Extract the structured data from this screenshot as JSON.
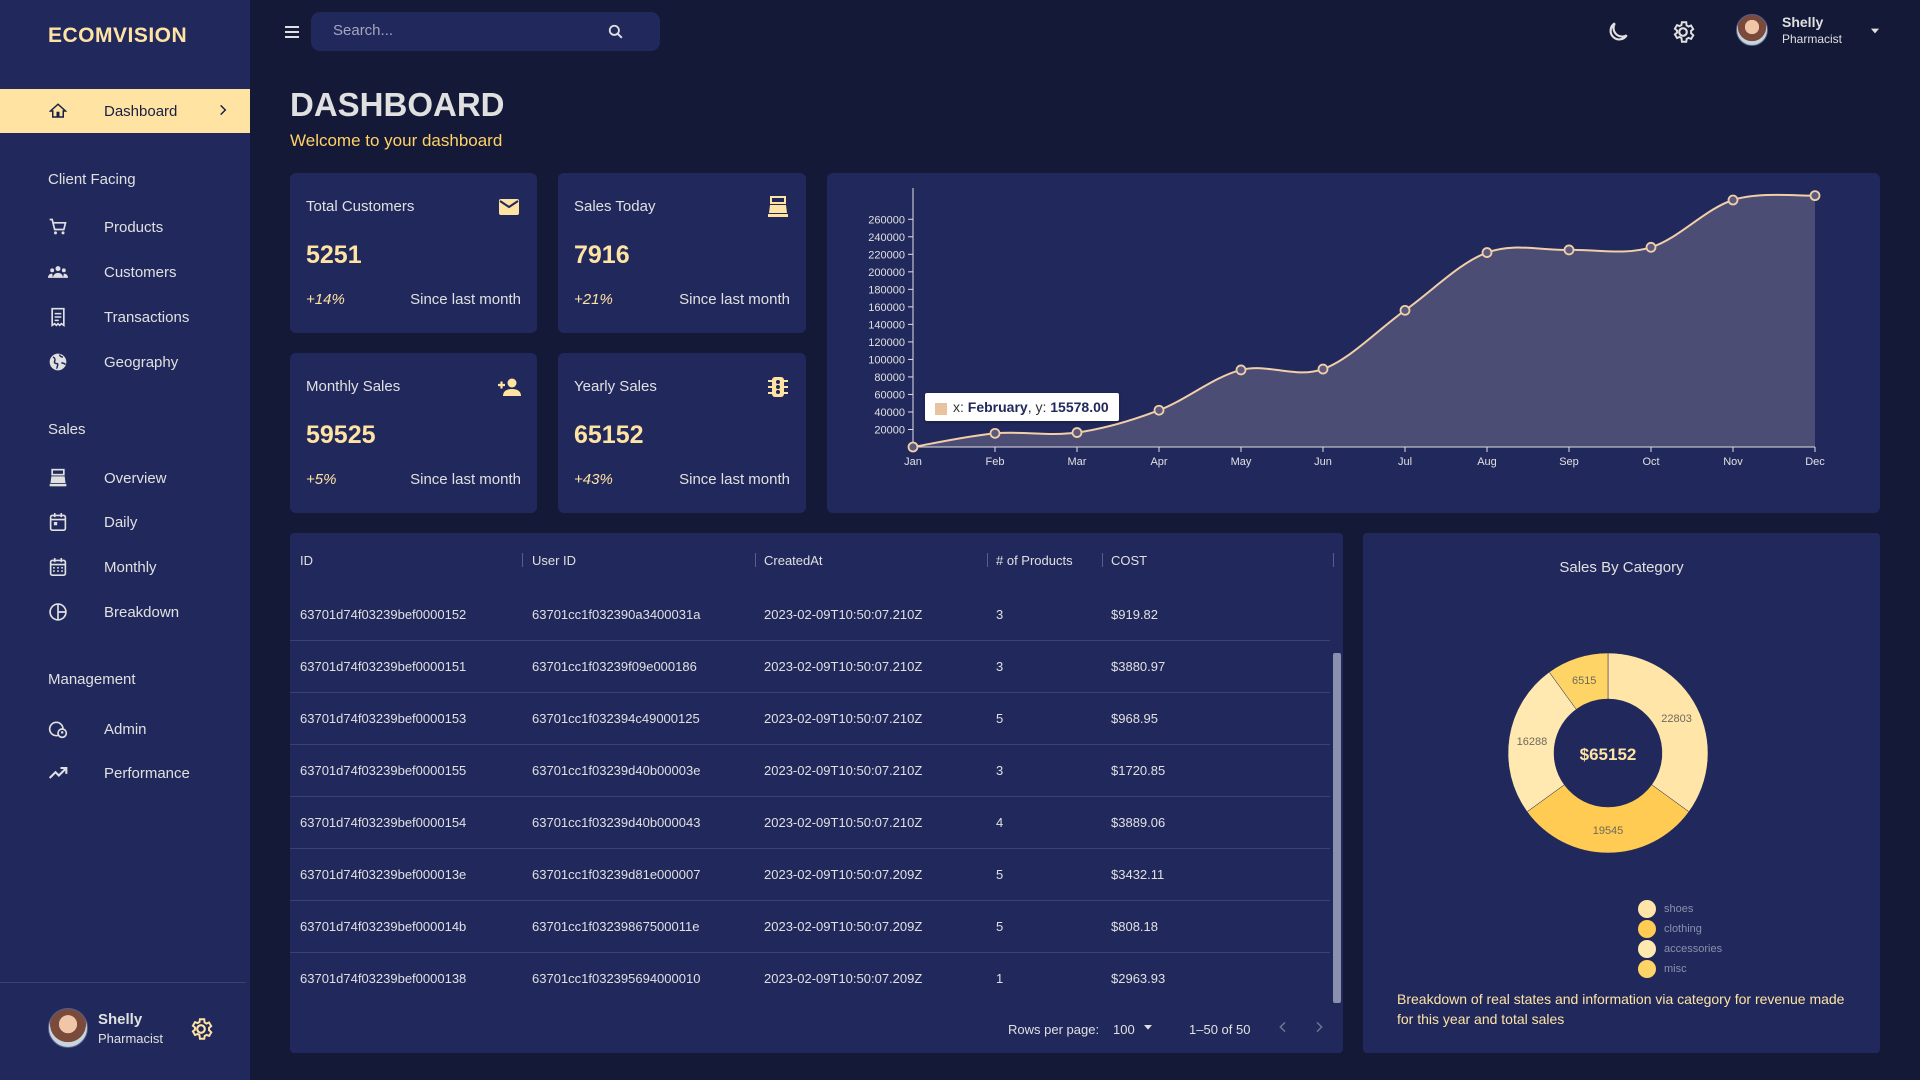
{
  "brand": "ECOMVISION",
  "search": {
    "placeholder": "Search..."
  },
  "user": {
    "name": "Shelly",
    "role": "Pharmacist"
  },
  "nav": {
    "dashboard": "Dashboard",
    "sections": {
      "client": "Client Facing",
      "sales": "Sales",
      "management": "Management"
    },
    "client_items": [
      "Products",
      "Customers",
      "Transactions",
      "Geography"
    ],
    "sales_items": [
      "Overview",
      "Daily",
      "Monthly",
      "Breakdown"
    ],
    "management_items": [
      "Admin",
      "Performance"
    ]
  },
  "header": {
    "title": "DASHBOARD",
    "subtitle": "Welcome to your dashboard"
  },
  "stats": [
    {
      "title": "Total Customers",
      "value": "5251",
      "increase": "+14%",
      "description": "Since last month",
      "icon": "email-icon"
    },
    {
      "title": "Sales Today",
      "value": "7916",
      "increase": "+21%",
      "description": "Since last month",
      "icon": "point-of-sale-icon"
    },
    {
      "title": "Monthly Sales",
      "value": "59525",
      "increase": "+5%",
      "description": "Since last month",
      "icon": "person-add-icon"
    },
    {
      "title": "Yearly Sales",
      "value": "65152",
      "increase": "+43%",
      "description": "Since last month",
      "icon": "traffic-icon"
    }
  ],
  "chart_data": [
    {
      "type": "area",
      "title": "",
      "xlabel": "",
      "ylabel": "",
      "x": [
        "Jan",
        "Feb",
        "Mar",
        "Apr",
        "May",
        "Jun",
        "Jul",
        "Aug",
        "Sep",
        "Oct",
        "Nov",
        "Dec"
      ],
      "series": [
        {
          "values": [
            0,
            15578,
            16500,
            42000,
            88000,
            89000,
            156000,
            222000,
            225000,
            228000,
            282000,
            287000
          ]
        }
      ],
      "yticks": [
        20000,
        40000,
        60000,
        80000,
        100000,
        120000,
        140000,
        160000,
        180000,
        200000,
        220000,
        240000,
        260000
      ],
      "ylim": [
        0,
        290000
      ],
      "grid": false,
      "tooltip": {
        "x": "February",
        "y": "15578.00"
      }
    },
    {
      "type": "pie",
      "title": "Sales By Category",
      "categories": [
        "shoes",
        "clothing",
        "accessories",
        "misc"
      ],
      "values": [
        22803,
        19545,
        16288,
        6515
      ],
      "colors": [
        "#ffe6a8",
        "#ffcb52",
        "#ffe9b0",
        "#ffd466"
      ],
      "center_label": "$65152",
      "legend": "bottom"
    }
  ],
  "pie_description": "Breakdown of real states and information via category for revenue made for this year and total sales",
  "table": {
    "columns": [
      "ID",
      "User ID",
      "CreatedAt",
      "# of Products",
      "COST"
    ],
    "rows": [
      [
        "63701d74f03239bef0000152",
        "63701cc1f032390a3400031a",
        "2023-02-09T10:50:07.210Z",
        "3",
        "$919.82"
      ],
      [
        "63701d74f03239bef0000151",
        "63701cc1f03239f09e000186",
        "2023-02-09T10:50:07.210Z",
        "3",
        "$3880.97"
      ],
      [
        "63701d74f03239bef0000153",
        "63701cc1f032394c49000125",
        "2023-02-09T10:50:07.210Z",
        "5",
        "$968.95"
      ],
      [
        "63701d74f03239bef0000155",
        "63701cc1f03239d40b00003e",
        "2023-02-09T10:50:07.210Z",
        "3",
        "$1720.85"
      ],
      [
        "63701d74f03239bef0000154",
        "63701cc1f03239d40b000043",
        "2023-02-09T10:50:07.210Z",
        "4",
        "$3889.06"
      ],
      [
        "63701d74f03239bef000013e",
        "63701cc1f03239d81e000007",
        "2023-02-09T10:50:07.209Z",
        "5",
        "$3432.11"
      ],
      [
        "63701d74f03239bef000014b",
        "63701cc1f03239867500011e",
        "2023-02-09T10:50:07.209Z",
        "5",
        "$808.18"
      ],
      [
        "63701d74f03239bef0000138",
        "63701cc1f032395694000010",
        "2023-02-09T10:50:07.209Z",
        "1",
        "$2963.93"
      ]
    ],
    "footer": {
      "rows_label": "Rows per page:",
      "rows_value": "100",
      "range": "1–50 of 50"
    }
  },
  "colors": {
    "background": "#141937",
    "panel": "#21295c",
    "accent": "#ffe3a3",
    "subtitle": "#ffd166"
  }
}
